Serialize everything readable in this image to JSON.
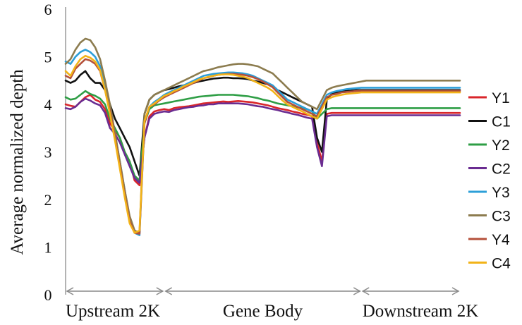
{
  "chart_data": {
    "type": "line",
    "ylabel": "Average normalized depth",
    "xlabel": "",
    "ylim": [
      0,
      6
    ],
    "yticks": [
      "0",
      "1",
      "2",
      "3",
      "4",
      "5",
      "6"
    ],
    "grid": false,
    "legend_position": "right",
    "regions": [
      {
        "label": "Upstream 2K",
        "start": 0,
        "end": 20
      },
      {
        "label": "Gene Body",
        "start": 20,
        "end": 60
      },
      {
        "label": "Downstream 2K",
        "start": 60,
        "end": 80
      }
    ],
    "x": [
      0,
      1,
      2,
      3,
      4,
      5,
      6,
      7,
      8,
      9,
      10,
      11,
      12,
      13,
      14,
      15,
      16,
      17,
      18,
      19,
      20,
      21,
      22,
      23,
      24,
      25,
      26,
      27,
      28,
      29,
      30,
      31,
      32,
      33,
      34,
      35,
      36,
      37,
      38,
      39,
      40,
      41,
      42,
      43,
      44,
      45,
      46,
      47,
      48,
      49,
      50,
      51,
      52,
      53,
      54,
      55,
      56,
      57,
      58,
      59,
      60,
      61,
      62,
      63,
      64,
      65,
      66,
      67,
      68,
      69,
      70,
      71,
      72,
      73,
      74,
      75,
      76,
      77,
      78,
      79,
      80
    ],
    "series": [
      {
        "name": "Y1",
        "color": "#d9262b",
        "values": [
          4.0,
          3.97,
          3.95,
          4.05,
          4.15,
          4.2,
          4.1,
          4.05,
          3.9,
          3.6,
          3.45,
          3.3,
          3.0,
          2.8,
          2.4,
          2.3,
          3.3,
          3.75,
          3.85,
          3.88,
          3.9,
          3.88,
          3.92,
          3.94,
          3.95,
          3.96,
          3.98,
          4.0,
          4.02,
          4.03,
          4.04,
          4.05,
          4.06,
          4.05,
          4.06,
          4.07,
          4.06,
          4.05,
          4.04,
          4.02,
          4.0,
          3.98,
          3.95,
          3.92,
          3.9,
          3.88,
          3.85,
          3.83,
          3.8,
          3.78,
          3.75,
          3.2,
          2.8,
          3.8,
          3.82,
          3.82,
          3.82,
          3.82,
          3.82,
          3.82,
          3.82,
          3.82,
          3.82,
          3.82,
          3.82,
          3.82,
          3.82,
          3.82,
          3.82,
          3.82,
          3.82,
          3.82,
          3.82,
          3.82,
          3.82,
          3.82,
          3.82,
          3.82,
          3.82,
          3.82,
          3.82
        ]
      },
      {
        "name": "C1",
        "color": "#111111",
        "values": [
          4.5,
          4.45,
          4.5,
          4.62,
          4.7,
          4.55,
          4.45,
          4.45,
          4.3,
          4.0,
          3.7,
          3.5,
          3.3,
          3.1,
          2.8,
          2.5,
          3.8,
          4.1,
          4.2,
          4.25,
          4.3,
          4.32,
          4.35,
          4.38,
          4.4,
          4.42,
          4.45,
          4.48,
          4.5,
          4.52,
          4.54,
          4.55,
          4.56,
          4.56,
          4.55,
          4.55,
          4.54,
          4.53,
          4.5,
          4.48,
          4.45,
          4.42,
          4.38,
          4.3,
          4.25,
          4.2,
          4.15,
          4.1,
          4.05,
          4.0,
          3.95,
          3.3,
          3.0,
          4.1,
          4.22,
          4.25,
          4.27,
          4.28,
          4.29,
          4.3,
          4.3,
          4.3,
          4.3,
          4.3,
          4.3,
          4.3,
          4.3,
          4.3,
          4.3,
          4.3,
          4.3,
          4.3,
          4.3,
          4.3,
          4.3,
          4.3,
          4.3,
          4.3,
          4.3,
          4.3,
          4.3
        ]
      },
      {
        "name": "Y2",
        "color": "#2e9e45",
        "values": [
          4.15,
          4.1,
          4.12,
          4.2,
          4.28,
          4.22,
          4.18,
          4.12,
          4.0,
          3.7,
          3.5,
          3.3,
          3.0,
          2.8,
          2.5,
          2.4,
          3.6,
          3.9,
          3.98,
          4.0,
          4.02,
          4.04,
          4.06,
          4.08,
          4.1,
          4.12,
          4.14,
          4.16,
          4.17,
          4.18,
          4.19,
          4.2,
          4.2,
          4.2,
          4.2,
          4.19,
          4.18,
          4.17,
          4.15,
          4.13,
          4.1,
          4.08,
          4.05,
          4.02,
          4.0,
          3.98,
          3.96,
          3.94,
          3.92,
          3.9,
          3.85,
          3.7,
          3.8,
          3.9,
          3.92,
          3.92,
          3.92,
          3.92,
          3.92,
          3.92,
          3.92,
          3.92,
          3.92,
          3.92,
          3.92,
          3.92,
          3.92,
          3.92,
          3.92,
          3.92,
          3.92,
          3.92,
          3.92,
          3.92,
          3.92,
          3.92,
          3.92,
          3.92,
          3.92,
          3.92,
          3.92
        ]
      },
      {
        "name": "C2",
        "color": "#6a2c91",
        "values": [
          3.92,
          3.9,
          3.95,
          4.05,
          4.12,
          4.08,
          4.02,
          3.98,
          3.82,
          3.5,
          3.38,
          3.2,
          2.95,
          2.7,
          2.45,
          2.35,
          3.3,
          3.7,
          3.8,
          3.83,
          3.85,
          3.84,
          3.88,
          3.9,
          3.92,
          3.94,
          3.95,
          3.97,
          3.98,
          4.0,
          4.0,
          4.02,
          4.02,
          4.02,
          4.02,
          4.02,
          4.01,
          4.0,
          3.98,
          3.96,
          3.95,
          3.92,
          3.9,
          3.88,
          3.85,
          3.83,
          3.8,
          3.78,
          3.75,
          3.72,
          3.7,
          3.1,
          2.7,
          3.75,
          3.77,
          3.77,
          3.77,
          3.77,
          3.77,
          3.77,
          3.77,
          3.77,
          3.77,
          3.77,
          3.77,
          3.77,
          3.77,
          3.77,
          3.77,
          3.77,
          3.77,
          3.77,
          3.77,
          3.77,
          3.77,
          3.77,
          3.77,
          3.77,
          3.77,
          3.77,
          3.77
        ]
      },
      {
        "name": "Y3",
        "color": "#2d9fd8",
        "values": [
          4.9,
          4.85,
          5.0,
          5.1,
          5.15,
          5.1,
          5.0,
          4.8,
          4.4,
          3.9,
          3.4,
          2.8,
          2.2,
          1.6,
          1.3,
          1.25,
          3.6,
          3.95,
          4.05,
          4.12,
          4.2,
          4.25,
          4.3,
          4.35,
          4.4,
          4.45,
          4.5,
          4.55,
          4.6,
          4.62,
          4.64,
          4.65,
          4.66,
          4.67,
          4.67,
          4.66,
          4.65,
          4.63,
          4.6,
          4.55,
          4.5,
          4.45,
          4.4,
          4.3,
          4.2,
          4.1,
          4.05,
          4.0,
          3.95,
          3.9,
          3.85,
          3.8,
          4.0,
          4.2,
          4.25,
          4.28,
          4.3,
          4.32,
          4.33,
          4.34,
          4.35,
          4.35,
          4.35,
          4.35,
          4.35,
          4.35,
          4.35,
          4.35,
          4.35,
          4.35,
          4.35,
          4.35,
          4.35,
          4.35,
          4.35,
          4.35,
          4.35,
          4.35,
          4.35,
          4.35,
          4.35
        ]
      },
      {
        "name": "C3",
        "color": "#8c7c4f",
        "values": [
          4.85,
          4.95,
          5.15,
          5.3,
          5.38,
          5.35,
          5.2,
          4.95,
          4.5,
          4.0,
          3.4,
          2.8,
          2.2,
          1.65,
          1.35,
          1.3,
          3.8,
          4.1,
          4.2,
          4.25,
          4.3,
          4.35,
          4.4,
          4.45,
          4.5,
          4.55,
          4.6,
          4.65,
          4.7,
          4.72,
          4.75,
          4.78,
          4.8,
          4.82,
          4.84,
          4.85,
          4.85,
          4.84,
          4.82,
          4.8,
          4.75,
          4.7,
          4.65,
          4.55,
          4.45,
          4.35,
          4.25,
          4.15,
          4.05,
          4.0,
          3.95,
          3.9,
          4.1,
          4.3,
          4.35,
          4.38,
          4.4,
          4.42,
          4.44,
          4.46,
          4.48,
          4.5,
          4.5,
          4.5,
          4.5,
          4.5,
          4.5,
          4.5,
          4.5,
          4.5,
          4.5,
          4.5,
          4.5,
          4.5,
          4.5,
          4.5,
          4.5,
          4.5,
          4.5,
          4.5,
          4.5
        ]
      },
      {
        "name": "Y4",
        "color": "#b5503a",
        "values": [
          4.6,
          4.55,
          4.75,
          4.85,
          4.95,
          4.92,
          4.85,
          4.7,
          4.3,
          3.85,
          3.3,
          2.7,
          2.1,
          1.55,
          1.3,
          1.28,
          3.6,
          3.95,
          4.0,
          4.08,
          4.15,
          4.2,
          4.25,
          4.3,
          4.35,
          4.4,
          4.45,
          4.5,
          4.55,
          4.57,
          4.6,
          4.62,
          4.63,
          4.64,
          4.64,
          4.63,
          4.62,
          4.6,
          4.57,
          4.53,
          4.48,
          4.42,
          4.36,
          4.25,
          4.15,
          4.05,
          4.0,
          3.95,
          3.9,
          3.85,
          3.8,
          3.75,
          3.95,
          4.15,
          4.2,
          4.22,
          4.25,
          4.26,
          4.27,
          4.28,
          4.28,
          4.28,
          4.28,
          4.28,
          4.28,
          4.28,
          4.28,
          4.28,
          4.28,
          4.28,
          4.28,
          4.28,
          4.28,
          4.28,
          4.28,
          4.28,
          4.28,
          4.28,
          4.28,
          4.28,
          4.28
        ]
      },
      {
        "name": "C4",
        "color": "#f2b318",
        "values": [
          4.7,
          4.6,
          4.8,
          4.95,
          5.02,
          4.98,
          4.9,
          4.72,
          4.3,
          3.8,
          3.25,
          2.65,
          2.05,
          1.5,
          1.3,
          1.35,
          3.65,
          3.95,
          4.02,
          4.1,
          4.18,
          4.22,
          4.28,
          4.32,
          4.38,
          4.42,
          4.47,
          4.52,
          4.55,
          4.58,
          4.6,
          4.62,
          4.63,
          4.63,
          4.62,
          4.6,
          4.58,
          4.55,
          4.5,
          4.45,
          4.4,
          4.35,
          4.28,
          4.18,
          4.08,
          4.0,
          3.95,
          3.9,
          3.85,
          3.8,
          3.75,
          3.7,
          3.9,
          4.1,
          4.15,
          4.18,
          4.2,
          4.22,
          4.23,
          4.24,
          4.25,
          4.25,
          4.25,
          4.25,
          4.25,
          4.25,
          4.25,
          4.25,
          4.25,
          4.25,
          4.25,
          4.25,
          4.25,
          4.25,
          4.25,
          4.25,
          4.25,
          4.25,
          4.25,
          4.25,
          4.25
        ]
      }
    ]
  }
}
